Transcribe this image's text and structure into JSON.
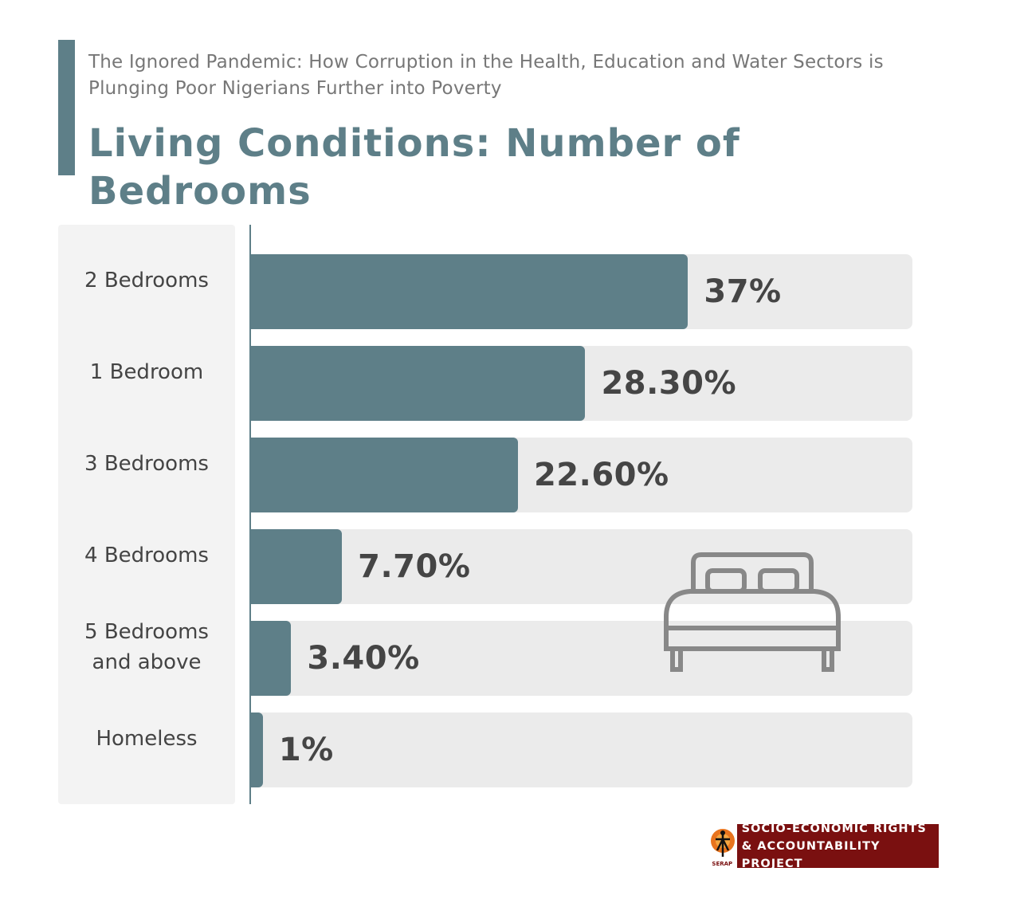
{
  "header": {
    "subtitle_line1": "The Ignored Pandemic: How Corruption in the Health, Education and Water Sectors is",
    "subtitle_line2": "Plunging Poor Nigerians Further into Poverty",
    "title": "Living Conditions: Number of Bedrooms"
  },
  "colors": {
    "accent": "#5e7f88",
    "bar": "#5e7f88",
    "track": "#ebebeb",
    "title": "#5e7f88",
    "logo_bg": "#7a1010"
  },
  "icons": {
    "decoration": "bed-icon",
    "logo": "serap-logo-icon"
  },
  "logo": {
    "abbr": "SERAP",
    "line1": "SOCIO-ECONOMIC RIGHTS",
    "line2": "& ACCOUNTABILITY PROJECT"
  },
  "chart_data": {
    "type": "bar",
    "orientation": "horizontal",
    "title": "Living Conditions: Number of Bedrooms",
    "categories": [
      "2 Bedrooms",
      "1 Bedroom",
      "3 Bedrooms",
      "4 Bedrooms",
      "5 Bedrooms and above",
      "Homeless"
    ],
    "category_lines": [
      [
        "2 Bedrooms"
      ],
      [
        "1 Bedroom"
      ],
      [
        "3 Bedrooms"
      ],
      [
        "4 Bedrooms"
      ],
      [
        "5 Bedrooms",
        "and above"
      ],
      [
        "Homeless"
      ]
    ],
    "values": [
      37,
      28.3,
      22.6,
      7.7,
      3.4,
      1
    ],
    "value_labels": [
      "37%",
      "28.30%",
      "22.60%",
      "7.70%",
      "3.40%",
      "1%"
    ],
    "xlim": [
      0,
      56
    ],
    "grid": false,
    "legend": "none"
  }
}
